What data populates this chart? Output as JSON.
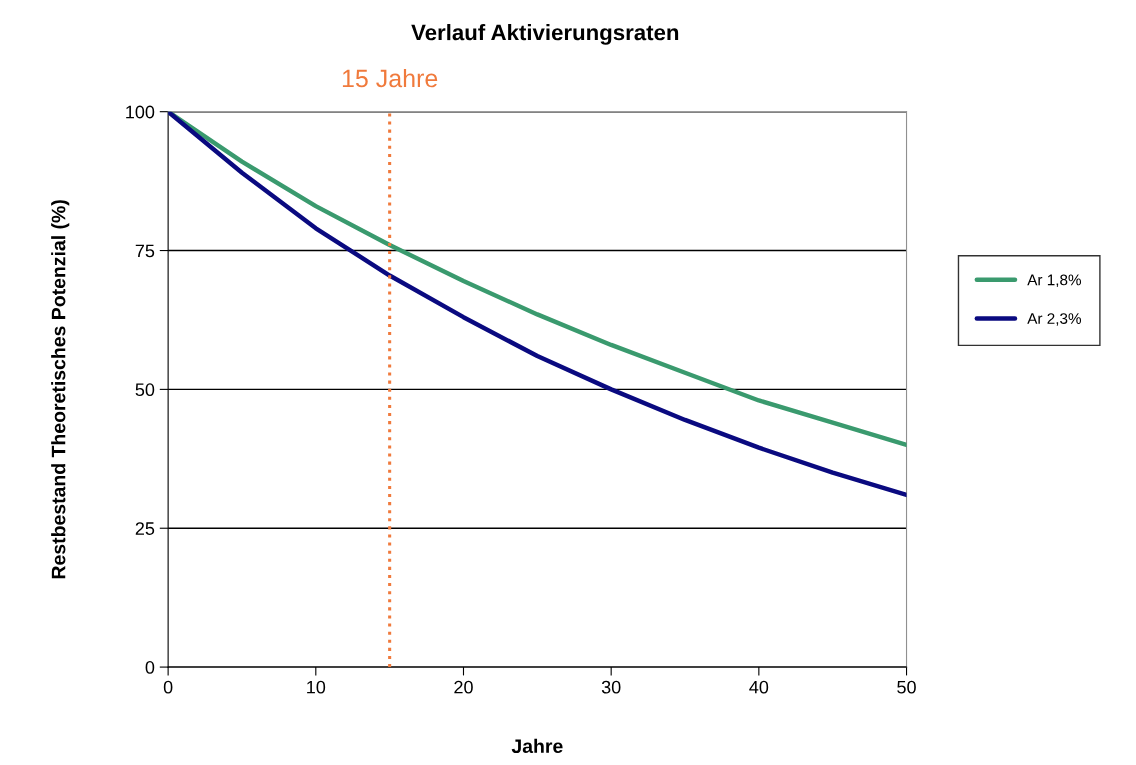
{
  "chart_data": {
    "type": "line",
    "title": "Verlauf Aktivierungsraten",
    "xlabel": "Jahre",
    "ylabel": "Restbestand Theoretisches Potenzial (%)",
    "x": [
      0,
      5,
      10,
      15,
      20,
      25,
      30,
      35,
      40,
      45,
      50
    ],
    "series": [
      {
        "name": "Ar 1,8%",
        "color": "#3a9a6e",
        "values": [
          100,
          91,
          83,
          76,
          69.5,
          63.5,
          58,
          53,
          48,
          44,
          40
        ]
      },
      {
        "name": "Ar 2,3%",
        "color": "#0a0a80",
        "values": [
          100,
          89,
          79,
          70.5,
          63,
          56,
          50,
          44.5,
          39.5,
          35,
          31
        ]
      }
    ],
    "xlim": [
      0,
      50
    ],
    "xticks": [
      0,
      10,
      20,
      30,
      40,
      50
    ],
    "ylim": [
      0,
      100
    ],
    "yticks": [
      0,
      25,
      50,
      75,
      100
    ],
    "ref_lines": [
      {
        "axis": "x",
        "value": 15,
        "label": "15 Jahre",
        "color": "#f07a3c",
        "line_style": "dotted"
      }
    ],
    "grid": "y",
    "legend": "right",
    "marker": "none",
    "line_style": "solid"
  }
}
